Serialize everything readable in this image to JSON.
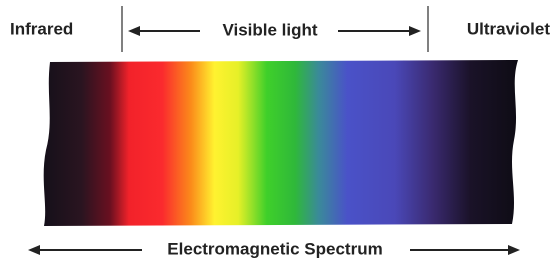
{
  "labels": {
    "left": "Infrared",
    "middle": "Visible light",
    "right": "Ultraviolet",
    "bottom": "Electromagnetic Spectrum"
  }
}
